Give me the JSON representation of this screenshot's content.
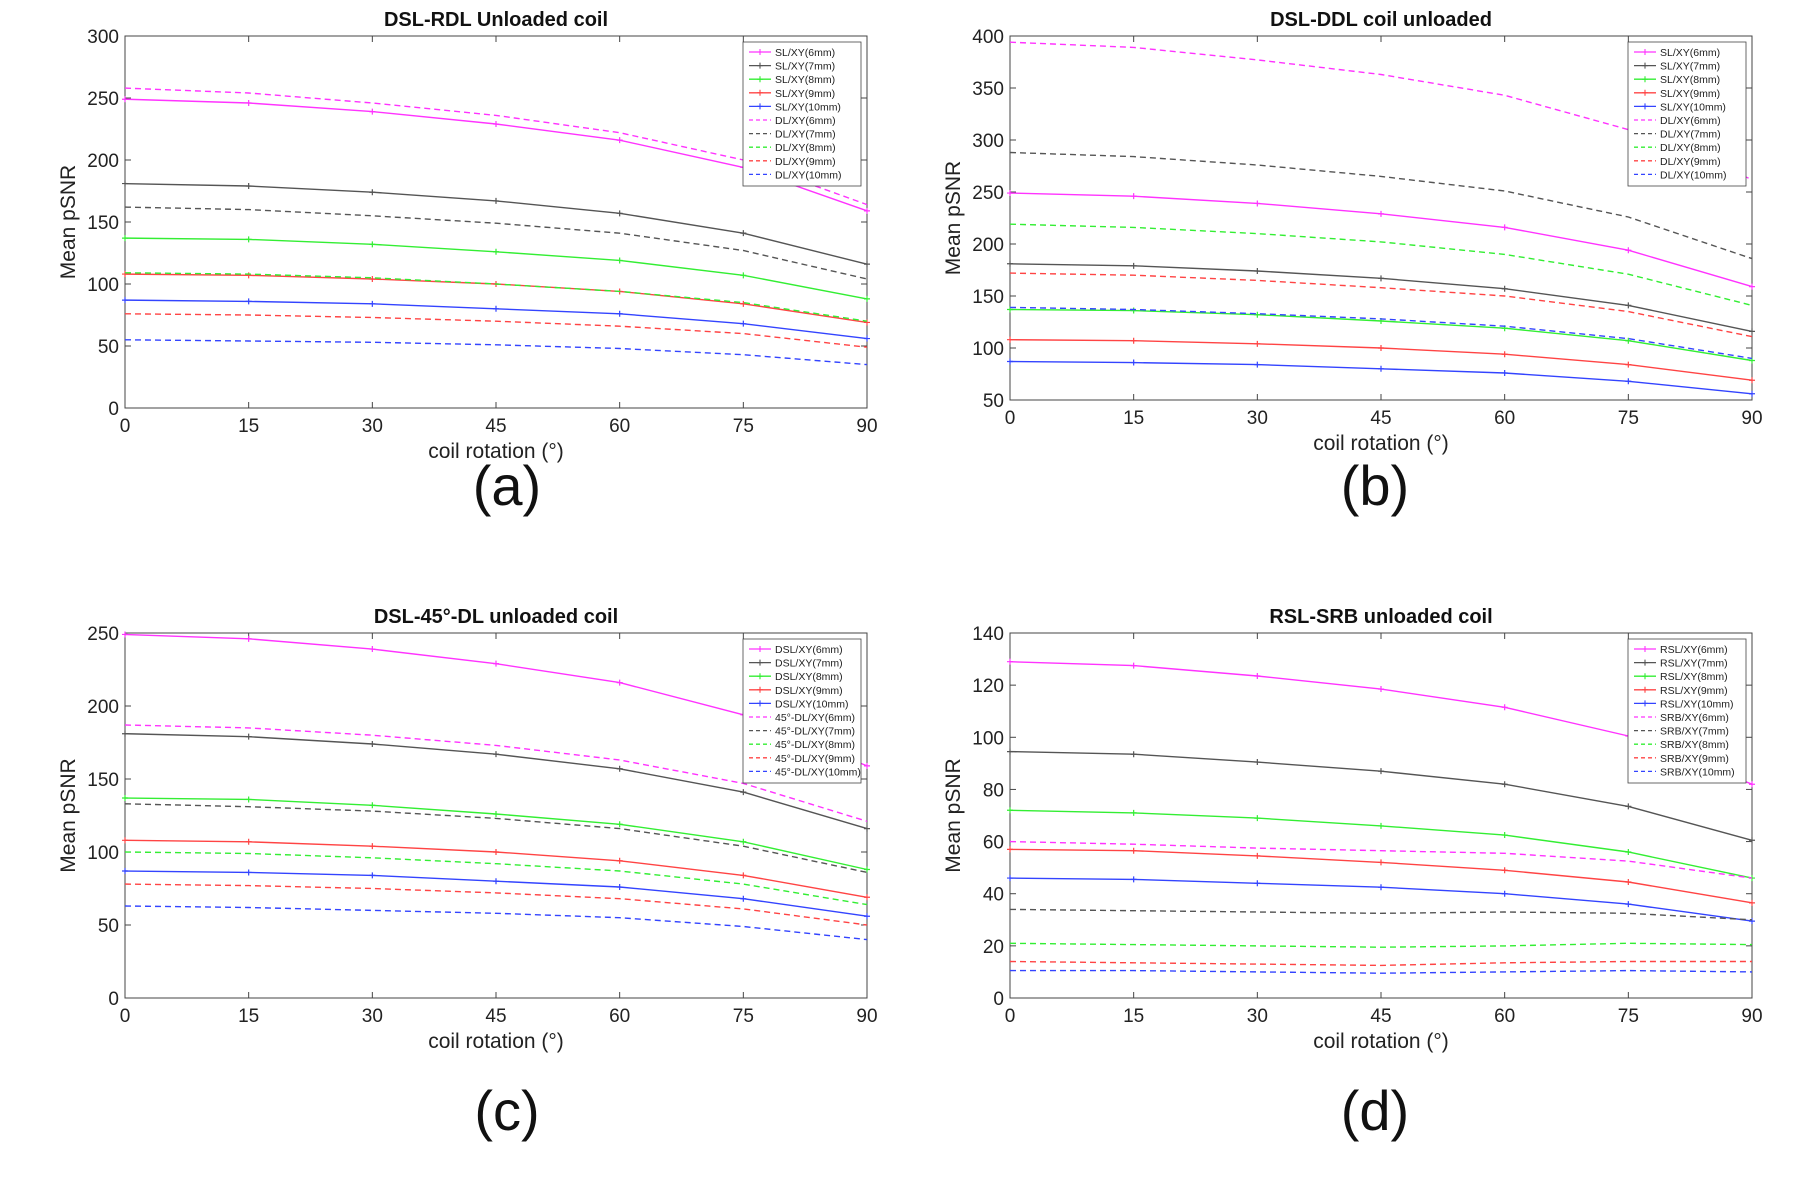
{
  "colors": {
    "6mm": "#ff33ff",
    "7mm": "#555555",
    "8mm": "#33ee33",
    "9mm": "#ff4444",
    "10mm": "#3344ff"
  },
  "chart_data": [
    {
      "type": "line",
      "panel_label": "(a)",
      "title": "DSL-RDL Unloaded coil",
      "xlabel": "coil rotation  (°)",
      "ylabel": "Mean pSNR",
      "x": [
        0,
        15,
        30,
        45,
        60,
        75,
        90
      ],
      "xticks": [
        "0",
        "15",
        "30",
        "45",
        "60",
        "75",
        "90"
      ],
      "xlim": [
        0,
        90
      ],
      "ylim": [
        0,
        300
      ],
      "yticks": [
        0,
        50,
        100,
        150,
        200,
        250,
        300
      ],
      "legend_position": "top-right",
      "series": [
        {
          "name": "SL/XY(6mm)",
          "color_key": "6mm",
          "dashed": false,
          "values": [
            249,
            246,
            239,
            229,
            216,
            194,
            159
          ]
        },
        {
          "name": "SL/XY(7mm)",
          "color_key": "7mm",
          "dashed": false,
          "values": [
            181,
            179,
            174,
            167,
            157,
            141,
            116
          ]
        },
        {
          "name": "SL/XY(8mm)",
          "color_key": "8mm",
          "dashed": false,
          "values": [
            137,
            136,
            132,
            126,
            119,
            107,
            88
          ]
        },
        {
          "name": "SL/XY(9mm)",
          "color_key": "9mm",
          "dashed": false,
          "values": [
            108,
            107,
            104,
            100,
            94,
            84,
            69
          ]
        },
        {
          "name": "SL/XY(10mm)",
          "color_key": "10mm",
          "dashed": false,
          "values": [
            87,
            86,
            84,
            80,
            76,
            68,
            56
          ]
        },
        {
          "name": "DL/XY(6mm)",
          "color_key": "6mm",
          "dashed": true,
          "values": [
            258,
            254,
            246,
            236,
            222,
            200,
            164
          ]
        },
        {
          "name": "DL/XY(7mm)",
          "color_key": "7mm",
          "dashed": true,
          "values": [
            162,
            160,
            155,
            149,
            141,
            127,
            104
          ]
        },
        {
          "name": "DL/XY(8mm)",
          "color_key": "8mm",
          "dashed": true,
          "values": [
            109,
            108,
            105,
            100,
            94,
            85,
            70
          ]
        },
        {
          "name": "DL/XY(9mm)",
          "color_key": "9mm",
          "dashed": true,
          "values": [
            76,
            75,
            73,
            70,
            66,
            60,
            49
          ]
        },
        {
          "name": "DL/XY(10mm)",
          "color_key": "10mm",
          "dashed": true,
          "values": [
            55,
            54,
            53,
            51,
            48,
            43,
            35
          ]
        }
      ]
    },
    {
      "type": "line",
      "panel_label": "(b)",
      "title": "DSL-DDL coil unloaded",
      "xlabel": "coil rotation  (°)",
      "ylabel": "Mean pSNR",
      "x": [
        0,
        15,
        30,
        45,
        60,
        75,
        90
      ],
      "xticks": [
        "0",
        "15",
        "30",
        "45",
        "60",
        "75",
        "90"
      ],
      "xlim": [
        0,
        90
      ],
      "ylim": [
        50,
        400
      ],
      "yticks": [
        50,
        100,
        150,
        200,
        250,
        300,
        350,
        400
      ],
      "legend_position": "top-right",
      "series": [
        {
          "name": "SL/XY(6mm)",
          "color_key": "6mm",
          "dashed": false,
          "values": [
            249,
            246,
            239,
            229,
            216,
            194,
            159
          ]
        },
        {
          "name": "SL/XY(7mm)",
          "color_key": "7mm",
          "dashed": false,
          "values": [
            181,
            179,
            174,
            167,
            157,
            141,
            116
          ]
        },
        {
          "name": "SL/XY(8mm)",
          "color_key": "8mm",
          "dashed": false,
          "values": [
            137,
            136,
            132,
            126,
            119,
            107,
            88
          ]
        },
        {
          "name": "SL/XY(9mm)",
          "color_key": "9mm",
          "dashed": false,
          "values": [
            108,
            107,
            104,
            100,
            94,
            84,
            69
          ]
        },
        {
          "name": "SL/XY(10mm)",
          "color_key": "10mm",
          "dashed": false,
          "values": [
            87,
            86,
            84,
            80,
            76,
            68,
            56
          ]
        },
        {
          "name": "DL/XY(6mm)",
          "color_key": "6mm",
          "dashed": true,
          "values": [
            394,
            389,
            377,
            363,
            343,
            310,
            262
          ]
        },
        {
          "name": "DL/XY(7mm)",
          "color_key": "7mm",
          "dashed": true,
          "values": [
            288,
            284,
            276,
            265,
            251,
            226,
            186
          ]
        },
        {
          "name": "DL/XY(8mm)",
          "color_key": "8mm",
          "dashed": true,
          "values": [
            219,
            216,
            210,
            202,
            190,
            171,
            141
          ]
        },
        {
          "name": "DL/XY(9mm)",
          "color_key": "9mm",
          "dashed": true,
          "values": [
            172,
            170,
            165,
            158,
            150,
            135,
            111
          ]
        },
        {
          "name": "DL/XY(10mm)",
          "color_key": "10mm",
          "dashed": true,
          "values": [
            139,
            137,
            133,
            128,
            121,
            109,
            90
          ]
        }
      ]
    },
    {
      "type": "line",
      "panel_label": "(c)",
      "title": "DSL-45°-DL unloaded coil",
      "xlabel": "coil rotation  (°)",
      "ylabel": "Mean pSNR",
      "x": [
        0,
        15,
        30,
        45,
        60,
        75,
        90
      ],
      "xticks": [
        "0",
        "15",
        "30",
        "45",
        "60",
        "75",
        "90"
      ],
      "xlim": [
        0,
        90
      ],
      "ylim": [
        0,
        250
      ],
      "yticks": [
        0,
        50,
        100,
        150,
        200,
        250
      ],
      "legend_position": "top-right",
      "series": [
        {
          "name": "DSL/XY(6mm)",
          "color_key": "6mm",
          "dashed": false,
          "values": [
            249,
            246,
            239,
            229,
            216,
            194,
            159
          ]
        },
        {
          "name": "DSL/XY(7mm)",
          "color_key": "7mm",
          "dashed": false,
          "values": [
            181,
            179,
            174,
            167,
            157,
            141,
            116
          ]
        },
        {
          "name": "DSL/XY(8mm)",
          "color_key": "8mm",
          "dashed": false,
          "values": [
            137,
            136,
            132,
            126,
            119,
            107,
            88
          ]
        },
        {
          "name": "DSL/XY(9mm)",
          "color_key": "9mm",
          "dashed": false,
          "values": [
            108,
            107,
            104,
            100,
            94,
            84,
            69
          ]
        },
        {
          "name": "DSL/XY(10mm)",
          "color_key": "10mm",
          "dashed": false,
          "values": [
            87,
            86,
            84,
            80,
            76,
            68,
            56
          ]
        },
        {
          "name": "45°-DL/XY(6mm)",
          "color_key": "6mm",
          "dashed": true,
          "values": [
            187,
            185,
            180,
            173,
            163,
            147,
            121
          ]
        },
        {
          "name": "45°-DL/XY(7mm)",
          "color_key": "7mm",
          "dashed": true,
          "values": [
            133,
            131,
            128,
            123,
            116,
            104,
            86
          ]
        },
        {
          "name": "45°-DL/XY(8mm)",
          "color_key": "8mm",
          "dashed": true,
          "values": [
            100,
            99,
            96,
            92,
            87,
            78,
            64
          ]
        },
        {
          "name": "45°-DL/XY(9mm)",
          "color_key": "9mm",
          "dashed": true,
          "values": [
            78,
            77,
            75,
            72,
            68,
            61,
            50
          ]
        },
        {
          "name": "45°-DL/XY(10mm)",
          "color_key": "10mm",
          "dashed": true,
          "values": [
            63,
            62,
            60,
            58,
            55,
            49,
            40
          ]
        }
      ]
    },
    {
      "type": "line",
      "panel_label": "(d)",
      "title": "RSL-SRB unloaded coil",
      "xlabel": "coil rotation  (°)",
      "ylabel": "Mean pSNR",
      "x": [
        0,
        15,
        30,
        45,
        60,
        75,
        90
      ],
      "xticks": [
        "0",
        "15",
        "30",
        "45",
        "60",
        "75",
        "90"
      ],
      "xlim": [
        0,
        90
      ],
      "ylim": [
        0,
        140
      ],
      "yticks": [
        0,
        20,
        40,
        60,
        80,
        100,
        120,
        140
      ],
      "legend_position": "top-right",
      "series": [
        {
          "name": "RSL/XY(6mm)",
          "color_key": "6mm",
          "dashed": false,
          "values": [
            129,
            127.5,
            123.5,
            118.5,
            111.5,
            100.5,
            82
          ]
        },
        {
          "name": "RSL/XY(7mm)",
          "color_key": "7mm",
          "dashed": false,
          "values": [
            94.5,
            93.5,
            90.5,
            87,
            82,
            73.5,
            60.5
          ]
        },
        {
          "name": "RSL/XY(8mm)",
          "color_key": "8mm",
          "dashed": false,
          "values": [
            72,
            71,
            69,
            66,
            62.5,
            56,
            46
          ]
        },
        {
          "name": "RSL/XY(9mm)",
          "color_key": "9mm",
          "dashed": false,
          "values": [
            57,
            56.5,
            54.5,
            52,
            49,
            44.5,
            36.5
          ]
        },
        {
          "name": "RSL/XY(10mm)",
          "color_key": "10mm",
          "dashed": false,
          "values": [
            46,
            45.5,
            44,
            42.5,
            40,
            36,
            29.5
          ]
        },
        {
          "name": "SRB/XY(6mm)",
          "color_key": "6mm",
          "dashed": true,
          "values": [
            60,
            59,
            57.5,
            56.5,
            55.5,
            52.5,
            46
          ]
        },
        {
          "name": "SRB/XY(7mm)",
          "color_key": "7mm",
          "dashed": true,
          "values": [
            34,
            33.5,
            33,
            32.5,
            33,
            32.5,
            30
          ]
        },
        {
          "name": "SRB/XY(8mm)",
          "color_key": "8mm",
          "dashed": true,
          "values": [
            21,
            20.5,
            20,
            19.5,
            20,
            21,
            20.5
          ]
        },
        {
          "name": "SRB/XY(9mm)",
          "color_key": "9mm",
          "dashed": true,
          "values": [
            14,
            13.5,
            13,
            12.5,
            13.5,
            14,
            14
          ]
        },
        {
          "name": "SRB/XY(10mm)",
          "color_key": "10mm",
          "dashed": true,
          "values": [
            10.5,
            10.5,
            10,
            9.5,
            10,
            10.5,
            10
          ]
        }
      ]
    }
  ]
}
